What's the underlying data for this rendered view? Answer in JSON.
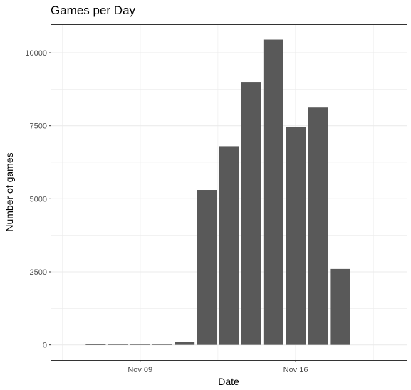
{
  "chart_data": {
    "type": "bar",
    "title": "Games per Day",
    "xlabel": "Date",
    "ylabel": "Number of games",
    "x_ticks": [
      {
        "label": "Nov 09",
        "date": "2020-11-09"
      },
      {
        "label": "Nov 16",
        "date": "2020-11-16"
      }
    ],
    "y_ticks": [
      0,
      2500,
      5000,
      7500,
      10000
    ],
    "xlim": [
      "2020-11-05",
      "2020-11-21"
    ],
    "ylim": [
      -520,
      10950
    ],
    "categories": [
      "2020-11-07",
      "2020-11-08",
      "2020-11-09",
      "2020-11-10",
      "2020-11-11",
      "2020-11-12",
      "2020-11-13",
      "2020-11-14",
      "2020-11-15",
      "2020-11-16",
      "2020-11-17",
      "2020-11-18"
    ],
    "values": [
      15,
      20,
      40,
      25,
      110,
      5300,
      6800,
      9000,
      10450,
      7450,
      8120,
      2600
    ],
    "grid": true,
    "legend": "none",
    "colors": {
      "bar": "#595959",
      "grid": "#ebebeb",
      "panel_border": "#333333",
      "tick_text": "#4d4d4d"
    }
  }
}
